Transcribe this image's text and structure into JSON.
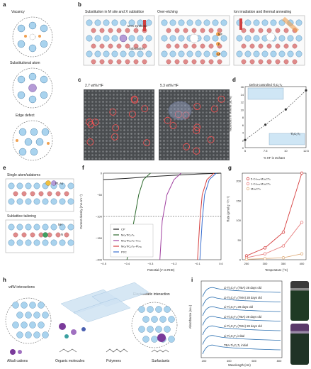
{
  "panels": {
    "a": {
      "label": "a",
      "captions": [
        "Vacancy",
        "Substitutional atom",
        "Edge defect"
      ]
    },
    "b": {
      "label": "b",
      "captions": [
        "Substitution in M site and X sublattice",
        "Over-etching",
        "Ion irradiation and thermal annealing"
      ],
      "annotations": [
        "MAX synthesis",
        "Substitution",
        "MF",
        "F",
        "AF"
      ]
    },
    "c": {
      "label": "c",
      "captions": [
        "2.7 wt% HF",
        "5.3 wt% HF"
      ]
    },
    "d": {
      "label": "d",
      "inset_title": "Defect-controlled Ti₃C₂Tₓ",
      "inset_bottom": "Ti₃C₂Tₓ",
      "ylabel": "Vacancies in MXene (at.%)",
      "xlabel": "% HF in etchant",
      "yticks": [
        "16",
        "14",
        "12",
        "10",
        "8",
        "6",
        "4",
        "2",
        "0"
      ],
      "xticks": [
        "5",
        "7.5",
        "10",
        "12.5"
      ]
    },
    "e": {
      "label": "e",
      "captions": [
        "Single atom/adatoms",
        "Sublattice tailoring"
      ],
      "annotations": [
        "Pt, Au",
        "NH",
        "N"
      ]
    },
    "f": {
      "label": "f",
      "ylabel": "Current density (mA cm⁻²)",
      "xlabel": "Potential (V vs RHE)",
      "xticks": [
        "−0.5",
        "−0.4",
        "−0.3",
        "−0.2",
        "−0.1",
        "0.0"
      ],
      "yticks": [
        "0",
        "−50",
        "−100",
        "−150",
        "−200"
      ],
      "legend": [
        "CP",
        "Mo₂TiC₂Tₓ",
        "Mo₂TiC₂Tₓ–Vₘₒ",
        "Mo₂TiC₂Tₓ–Ptₘₐ",
        "Pt/C"
      ]
    },
    "g": {
      "label": "g",
      "ylabel": "Rate (μmol g⁻¹ h⁻¹)",
      "xlabel": "Temperature (°C)",
      "xticks": [
        "250",
        "300",
        "350",
        "400"
      ],
      "yticks": [
        "0",
        "50",
        "100",
        "150",
        "200"
      ],
      "legend": [
        "5-Coₘₐ-Mo₂CTₓ",
        "1-Coₘₐ-Mo₂CTₓ",
        "Mo₂CTₓ"
      ]
    },
    "h": {
      "label": "h",
      "annotations": [
        "vdW interactions",
        "Electrostatic interaction"
      ],
      "captions": [
        "Alkali cations",
        "Organic molecules",
        "Polymers",
        "Surfactants"
      ]
    },
    "i": {
      "label": "i",
      "ylabel": "Absorbance (a.u.)",
      "xlabel": "Wavelength (nm)",
      "xticks": [
        "200",
        "400",
        "600",
        "800"
      ],
      "curve_labels": [
        "Li-Ti₃C₂Tₓ (TBA) 28 days old",
        "Li-Ti₃C₂Tₓ (TMA) 28 days old",
        "Li-Ti₃C₂Tₓ 28 days old",
        "Li-Ti₃C₂Tₓ (TBA) 28 days old",
        "Li-Ti₃C₂Tₓ (TMA) 28 days old",
        "Li-Ti₃C₂Tₓ initial",
        "TBA-Ti₃C₂Tₓ initial"
      ]
    }
  },
  "colors": {
    "metal": "#a9d3ee",
    "metal_edge": "#4a7fa8",
    "carbon": "#e08a8a",
    "orange": "#f0a050",
    "purple": "#b59bd6",
    "red_curve": "#d64040",
    "pink_curve": "#e88080",
    "tan_curve": "#e0b080",
    "dark_green": "#2e6b2e",
    "green": "#5ca05c",
    "magenta": "#a040a0",
    "blue_uv": "#2b6fb0"
  },
  "chart_data": [
    {
      "type": "line",
      "title": "",
      "xlabel": "Potential (V vs RHE)",
      "ylabel": "Current density (mA cm⁻²)",
      "xlim": [
        -0.5,
        0.0
      ],
      "ylim": [
        -200,
        0
      ],
      "series": [
        {
          "name": "CP",
          "x": [
            -0.5,
            -0.4,
            -0.3,
            -0.2,
            -0.1,
            0.0
          ],
          "values": [
            -15,
            -12,
            -8,
            -5,
            -2,
            0
          ]
        },
        {
          "name": "Mo₂TiC₂Tₓ",
          "x": [
            -0.4,
            -0.37,
            -0.35,
            -0.33,
            -0.3
          ],
          "values": [
            -200,
            -110,
            -50,
            -15,
            0
          ]
        },
        {
          "name": "Mo₂TiC₂Tₓ–Vₘₒ",
          "x": [
            -0.26,
            -0.25,
            -0.23,
            -0.2,
            -0.17
          ],
          "values": [
            -200,
            -110,
            -50,
            -15,
            0
          ]
        },
        {
          "name": "Mo₂TiC₂Tₓ–Ptₘₐ",
          "x": [
            -0.1,
            -0.09,
            -0.08,
            -0.06,
            -0.03
          ],
          "values": [
            -200,
            -110,
            -50,
            -15,
            0
          ]
        },
        {
          "name": "Pt/C",
          "x": [
            -0.09,
            -0.08,
            -0.07,
            -0.05,
            -0.02
          ],
          "values": [
            -200,
            -110,
            -50,
            -15,
            0
          ]
        }
      ]
    },
    {
      "type": "line",
      "title": "",
      "xlabel": "Temperature (°C)",
      "ylabel": "Rate (μmol g⁻¹ h⁻¹)",
      "categories": [
        250,
        300,
        350,
        400
      ],
      "ylim": [
        0,
        220
      ],
      "series": [
        {
          "name": "5-Coₘₐ-Mo₂CTₓ",
          "values": [
            10,
            30,
            70,
            220
          ]
        },
        {
          "name": "1-Coₘₐ-Mo₂CTₓ",
          "values": [
            5,
            15,
            35,
            95
          ]
        },
        {
          "name": "Mo₂CTₓ",
          "values": [
            1,
            3,
            5,
            15
          ]
        }
      ]
    },
    {
      "type": "scatter",
      "title": "",
      "xlabel": "% HF in etchant",
      "ylabel": "Vacancies in MXene (at.%)",
      "xlim": [
        5,
        12.5
      ],
      "ylim": [
        0,
        16
      ],
      "series": [
        {
          "name": "",
          "x": [
            5,
            7.5,
            10,
            12.5
          ],
          "values": [
            2,
            6,
            10,
            15
          ]
        }
      ]
    }
  ]
}
